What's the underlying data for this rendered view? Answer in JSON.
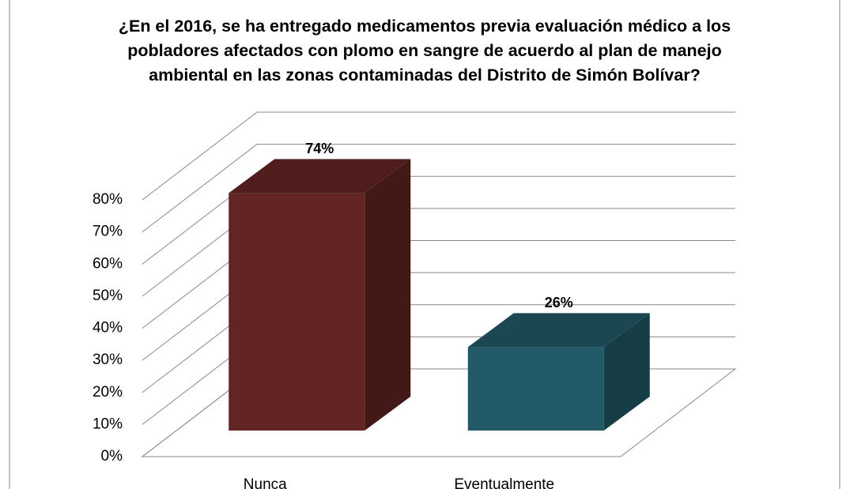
{
  "chart_data": {
    "type": "bar3d",
    "title": "¿En el 2016, se ha entregado  medicamentos  previa evaluación médico a los pobladores afectados con plomo en sangre  de acuerdo al plan de manejo ambiental en las zonas contaminadas del Distrito de Simón Bolívar?",
    "categories": [
      "Nunca",
      "Eventualmente"
    ],
    "values": [
      74,
      26
    ],
    "value_labels": [
      "74%",
      "26%"
    ],
    "colors": [
      "#632523",
      "#215967"
    ],
    "ylim": [
      0,
      80
    ],
    "yticks": [
      {
        "value": 0,
        "label": "0%"
      },
      {
        "value": 10,
        "label": "10%"
      },
      {
        "value": 20,
        "label": "20%"
      },
      {
        "value": 30,
        "label": "30%"
      },
      {
        "value": 40,
        "label": "40%"
      },
      {
        "value": 50,
        "label": "50%"
      },
      {
        "value": 60,
        "label": "60%"
      },
      {
        "value": 70,
        "label": "70%"
      },
      {
        "value": 80,
        "label": "80%"
      }
    ],
    "grid": true
  }
}
